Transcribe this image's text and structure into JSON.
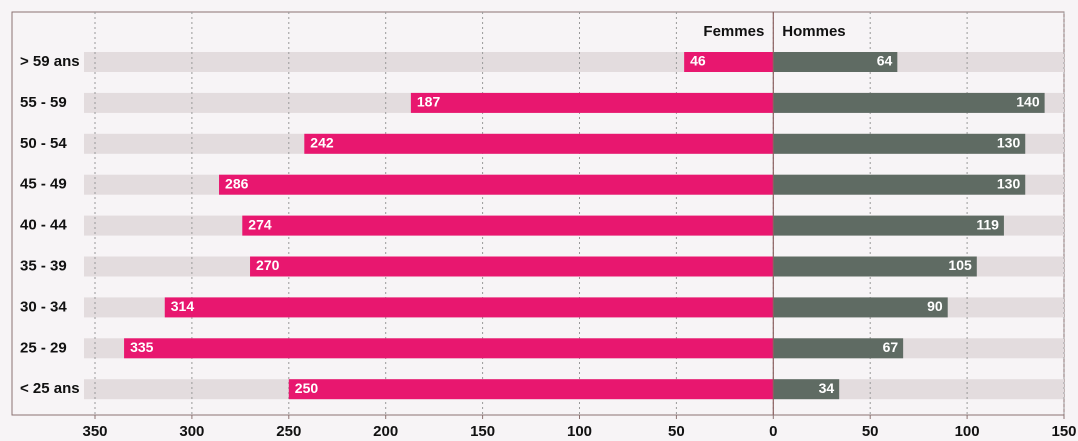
{
  "chart_data": {
    "type": "pyramid",
    "categories": [
      "> 59 ans",
      "55 - 59",
      "50 - 54",
      "45 - 49",
      "40 - 44",
      "35 - 39",
      "30 - 34",
      "25 - 29",
      "< 25 ans"
    ],
    "series": [
      {
        "name": "Femmes",
        "color": "#e8176f",
        "values": [
          46,
          187,
          242,
          286,
          274,
          270,
          314,
          335,
          250
        ]
      },
      {
        "name": "Hommes",
        "color": "#5f6b63",
        "values": [
          64,
          140,
          130,
          130,
          119,
          105,
          90,
          67,
          34
        ]
      }
    ],
    "xlim": [
      -350,
      150
    ],
    "xticks": [
      {
        "value": -350,
        "label": "350"
      },
      {
        "value": -300,
        "label": "300"
      },
      {
        "value": -250,
        "label": "250"
      },
      {
        "value": -200,
        "label": "200"
      },
      {
        "value": -150,
        "label": "150"
      },
      {
        "value": -100,
        "label": "100"
      },
      {
        "value": -50,
        "label": "50"
      },
      0,
      50,
      100,
      150
    ],
    "grid": true
  }
}
